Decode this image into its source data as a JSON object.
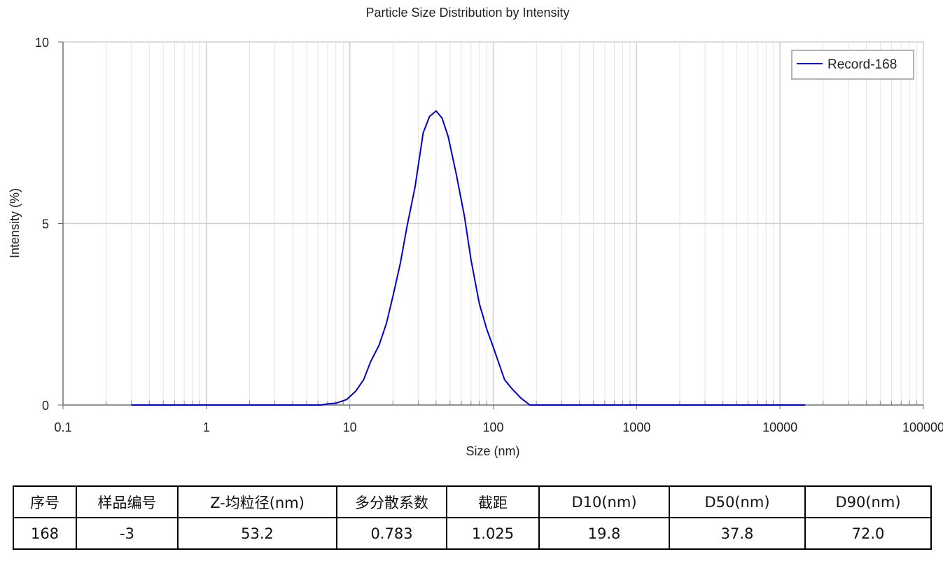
{
  "chart_data": {
    "type": "line",
    "title": "Particle Size Distribution by Intensity",
    "xlabel": "Size (nm)",
    "ylabel": "Intensity (%)",
    "x_scale": "log",
    "xlim": [
      0.1,
      100000
    ],
    "ylim": [
      0,
      10
    ],
    "x_ticks": [
      "0.1",
      "1",
      "10",
      "100",
      "1000",
      "10000",
      "100000"
    ],
    "y_ticks": [
      "0",
      "5",
      "10"
    ],
    "grid": true,
    "legend": "top-right",
    "series": [
      {
        "name": "Record-168",
        "color": "#0000cc",
        "points": [
          [
            0.3,
            0
          ],
          [
            6.3,
            0
          ],
          [
            7.0,
            0.03
          ],
          [
            8.0,
            0.05
          ],
          [
            9.5,
            0.15
          ],
          [
            11.0,
            0.38
          ],
          [
            12.5,
            0.7
          ],
          [
            14.0,
            1.2
          ],
          [
            16.0,
            1.65
          ],
          [
            18.0,
            2.25
          ],
          [
            20.0,
            3.0
          ],
          [
            22.5,
            3.9
          ],
          [
            25.0,
            4.9
          ],
          [
            28.5,
            6.0
          ],
          [
            32.5,
            7.5
          ],
          [
            36.0,
            7.95
          ],
          [
            40.0,
            8.1
          ],
          [
            44.0,
            7.9
          ],
          [
            48.5,
            7.4
          ],
          [
            55.0,
            6.4
          ],
          [
            63.0,
            5.2
          ],
          [
            70.0,
            4.0
          ],
          [
            80.0,
            2.8
          ],
          [
            90.0,
            2.1
          ],
          [
            100.0,
            1.6
          ],
          [
            120.0,
            0.7
          ],
          [
            135.0,
            0.45
          ],
          [
            155.0,
            0.2
          ],
          [
            180.0,
            0
          ],
          [
            15000.0,
            0
          ]
        ]
      }
    ]
  },
  "results_table": {
    "headers": [
      "序号",
      "样品编号",
      "Z-均粒径(nm)",
      "多分散系数",
      "截距",
      "D10(nm)",
      "D50(nm)",
      "D90(nm)"
    ],
    "row": [
      "168",
      "-3",
      "53.2",
      "0.783",
      "1.025",
      "19.8",
      "37.8",
      "72.0"
    ]
  }
}
